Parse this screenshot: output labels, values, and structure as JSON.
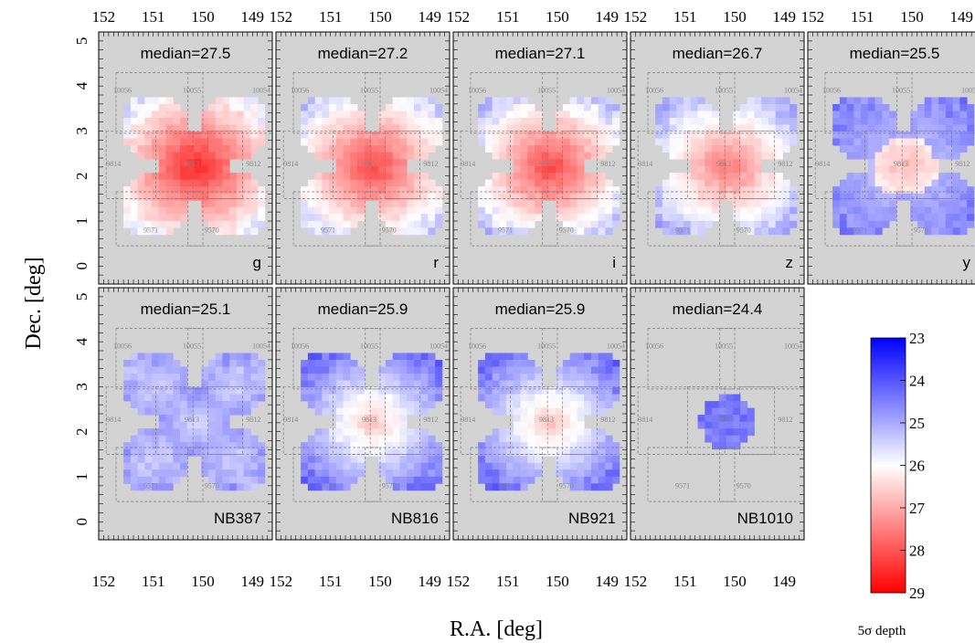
{
  "chart_data": {
    "type": "heatmap",
    "xlabel": "R.A. [deg]",
    "ylabel": "Dec. [deg]",
    "xlim": [
      152.1,
      148.6
    ],
    "ylim": [
      -0.4,
      5.2
    ],
    "x_ticks": [
      152,
      151,
      150,
      149
    ],
    "y_ticks": [
      0,
      1,
      2,
      3,
      4,
      5
    ],
    "colorbar": {
      "label": "5σ depth",
      "range": [
        23,
        29
      ],
      "ticks": [
        23,
        24,
        25,
        26,
        27,
        28,
        29
      ],
      "colors": {
        "shallow": "#0000ff",
        "mid": "#ffffff",
        "deep": "#ff0000",
        "background": "#d3d3d3"
      }
    },
    "tract_labels": [
      {
        "id": "10056",
        "ra": 151.62,
        "dec": 3.85
      },
      {
        "id": "10055",
        "ra": 150.22,
        "dec": 3.85
      },
      {
        "id": "10054",
        "ra": 148.82,
        "dec": 3.85
      },
      {
        "id": "9814",
        "ra": 151.8,
        "dec": 2.22
      },
      {
        "id": "9813",
        "ra": 150.22,
        "dec": 2.22
      },
      {
        "id": "9812",
        "ra": 148.98,
        "dec": 2.22
      },
      {
        "id": "9571",
        "ra": 151.05,
        "dec": 0.75
      },
      {
        "id": "9570",
        "ra": 149.82,
        "dec": 0.75
      }
    ],
    "panels": [
      {
        "band": "g",
        "median": "median=27.5",
        "depth": 27.5,
        "max_depth": 28.6,
        "shape": "wide",
        "pattern": "smooth"
      },
      {
        "band": "r",
        "median": "median=27.2",
        "depth": 27.2,
        "max_depth": 28.2,
        "shape": "wide",
        "pattern": "smooth"
      },
      {
        "band": "i",
        "median": "median=27.1",
        "depth": 27.1,
        "max_depth": 28.2,
        "shape": "wide",
        "pattern": "smooth"
      },
      {
        "band": "z",
        "median": "median=26.7",
        "depth": 26.7,
        "max_depth": 27.6,
        "shape": "wide",
        "pattern": "smooth"
      },
      {
        "band": "y",
        "median": "median=25.5",
        "depth": 25.5,
        "max_depth": 26.8,
        "shape": "wide",
        "pattern": "ring"
      },
      {
        "band": "NB387",
        "median": "median=25.1",
        "depth": 25.1,
        "max_depth": 25.4,
        "shape": "wide",
        "pattern": "quads"
      },
      {
        "band": "NB816",
        "median": "median=25.9",
        "depth": 25.9,
        "max_depth": 26.7,
        "shape": "wide",
        "pattern": "smooth"
      },
      {
        "band": "NB921",
        "median": "median=25.9",
        "depth": 25.9,
        "max_depth": 26.7,
        "shape": "wide",
        "pattern": "smooth"
      },
      {
        "band": "NB1010",
        "median": "median=24.4",
        "depth": 24.4,
        "max_depth": 24.7,
        "shape": "small",
        "pattern": "flat"
      }
    ]
  }
}
